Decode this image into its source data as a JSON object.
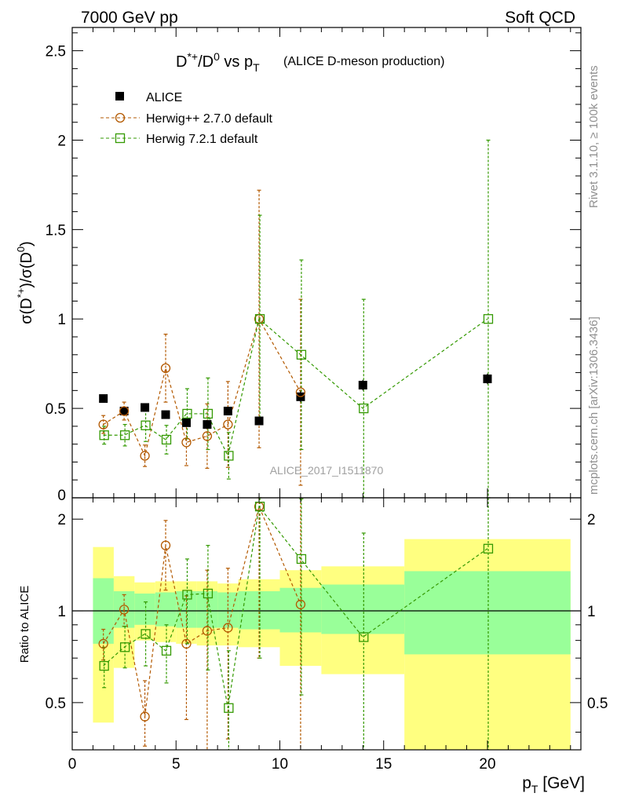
{
  "header": {
    "left": "7000 GeV pp",
    "right": "Soft QCD"
  },
  "side": {
    "rivet": "Rivet 3.1.10, ≥ 100k events",
    "mcplots": "mcplots.cern.ch [arXiv:1306.3436]"
  },
  "watermark": "ALICE_2017_I1511870",
  "colors": {
    "alice": "#000000",
    "herwig_old": "#b35900",
    "herwig_new": "#339900",
    "band_inner": "#99ff99",
    "band_outer": "#ffff80"
  },
  "chart_data": [
    {
      "type": "scatter",
      "title": {
        "main": "D*+/D0 vs pT",
        "sub": "(ALICE D-meson production)"
      },
      "ylabel": "σ(D*+)/σ(D0)",
      "xlabel": "",
      "xlim": [
        0,
        24.5
      ],
      "ylim": [
        0,
        2.63
      ],
      "yticks": [
        "0.5",
        "1",
        "1.5",
        "2",
        "2.5"
      ],
      "legend_position": "top-left",
      "series": [
        {
          "name": "ALICE",
          "x": [
            1.5,
            2.5,
            3.5,
            4.5,
            5.5,
            6.5,
            7.5,
            9,
            11,
            14,
            20
          ],
          "y": [
            0.555,
            0.485,
            0.505,
            0.465,
            0.42,
            0.41,
            0.485,
            0.43,
            0.565,
            0.63,
            0.665
          ],
          "err": [
            0.02,
            0.02,
            0.02,
            0.02,
            0.02,
            0.02,
            0.02,
            0.02,
            0.03,
            0.03,
            0.03
          ]
        },
        {
          "name": "Herwig++ 2.7.0 default",
          "x": [
            1.5,
            2.5,
            3.5,
            4.5,
            5.5,
            6.5,
            7.5,
            9,
            11
          ],
          "y": [
            0.41,
            0.485,
            0.235,
            0.725,
            0.31,
            0.345,
            0.41,
            1.0,
            0.59
          ],
          "err": [
            0.05,
            0.05,
            0.06,
            0.19,
            0.13,
            0.18,
            0.24,
            0.72,
            0.52
          ]
        },
        {
          "name": "Herwig 7.2.1 default",
          "x": [
            1.5,
            2.5,
            3.5,
            4.5,
            5.5,
            6.5,
            7.5,
            9,
            11,
            14,
            20
          ],
          "y": [
            0.35,
            0.35,
            0.405,
            0.325,
            0.47,
            0.47,
            0.235,
            1.0,
            0.8,
            0.5,
            1.0
          ],
          "err": [
            0.05,
            0.06,
            0.09,
            0.08,
            0.14,
            0.2,
            0.13,
            0.58,
            0.53,
            0.61,
            1.0
          ]
        }
      ]
    },
    {
      "type": "scatter",
      "ylabel": "Ratio to ALICE",
      "xlabel": "pT [GeV]",
      "xlim": [
        0,
        24.5
      ],
      "ylim": [
        0.35,
        2.35
      ],
      "yscale": "log",
      "xticks": [
        "0",
        "5",
        "10",
        "15",
        "20"
      ],
      "yticks": [
        "0.5",
        "1",
        "2"
      ],
      "bands": {
        "edges": [
          1,
          2,
          3,
          4,
          5,
          6,
          7,
          8,
          10,
          12,
          16,
          24
        ],
        "inner_low": [
          0.78,
          0.88,
          0.9,
          0.89,
          0.88,
          0.88,
          0.88,
          0.87,
          0.85,
          0.84,
          0.72
        ],
        "inner_high": [
          1.28,
          1.16,
          1.14,
          1.15,
          1.16,
          1.16,
          1.15,
          1.16,
          1.19,
          1.22,
          1.35
        ],
        "outer_low": [
          0.43,
          0.65,
          0.8,
          0.79,
          0.78,
          0.77,
          0.77,
          0.76,
          0.66,
          0.62,
          0.35
        ],
        "outer_high": [
          1.62,
          1.3,
          1.24,
          1.25,
          1.25,
          1.25,
          1.23,
          1.27,
          1.36,
          1.4,
          1.72
        ]
      },
      "series": [
        {
          "name": "Herwig++ 2.7.0 default",
          "x": [
            1.5,
            2.5,
            3.5,
            4.5,
            5.5,
            6.5,
            7.5,
            9,
            11
          ],
          "y": [
            0.78,
            1.01,
            0.45,
            1.64,
            0.78,
            0.86,
            0.88,
            2.2,
            1.05
          ],
          "err_low": [
            0.09,
            0.12,
            0.09,
            0.47,
            0.34,
            0.55,
            0.5,
            1.5,
            0.9
          ],
          "err_high": [
            0.09,
            0.12,
            0.14,
            0.34,
            0.34,
            0.5,
            0.5,
            0.15,
            1.3
          ]
        },
        {
          "name": "Herwig 7.2.1 default",
          "x": [
            1.5,
            2.5,
            3.5,
            4.5,
            5.5,
            6.5,
            7.5,
            9,
            11,
            14,
            20
          ],
          "y": [
            0.66,
            0.76,
            0.84,
            0.74,
            1.13,
            1.14,
            0.48,
            2.2,
            1.48,
            0.82,
            1.6
          ],
          "err_low": [
            0.1,
            0.11,
            0.18,
            0.16,
            0.35,
            0.5,
            0.26,
            1.5,
            0.95,
            0.82,
            1.6
          ],
          "err_high": [
            0.1,
            0.13,
            0.23,
            0.16,
            0.35,
            0.5,
            0.26,
            0.15,
            0.85,
            0.98,
            0.75
          ]
        }
      ]
    }
  ]
}
